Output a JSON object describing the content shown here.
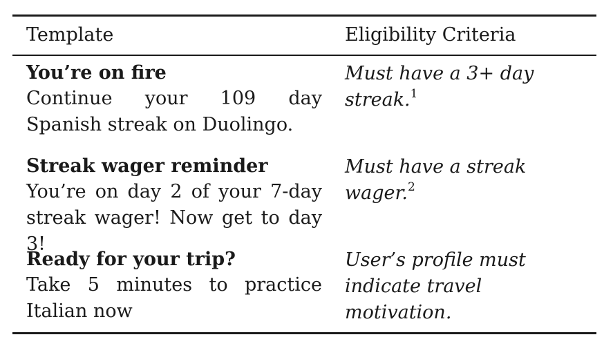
{
  "header": {
    "col1": "Template",
    "col2": "Eligibility Criteria"
  },
  "rows": [
    {
      "title": "You’re on fire",
      "body": "Continue your 109 day Spanish streak on Duolingo.",
      "criteria": "Must have a 3+ day streak.",
      "footnote": "1"
    },
    {
      "title": "Streak wager reminder",
      "body": "You’re on day 2 of your 7-day streak wager! Now get to day 3!",
      "criteria": "Must have a streak wager.",
      "footnote": "2"
    },
    {
      "title": "Ready for your trip?",
      "body": "Take 5 minutes to practice Italian now",
      "criteria": "User’s profile must indicate travel motivation.",
      "footnote": ""
    }
  ]
}
